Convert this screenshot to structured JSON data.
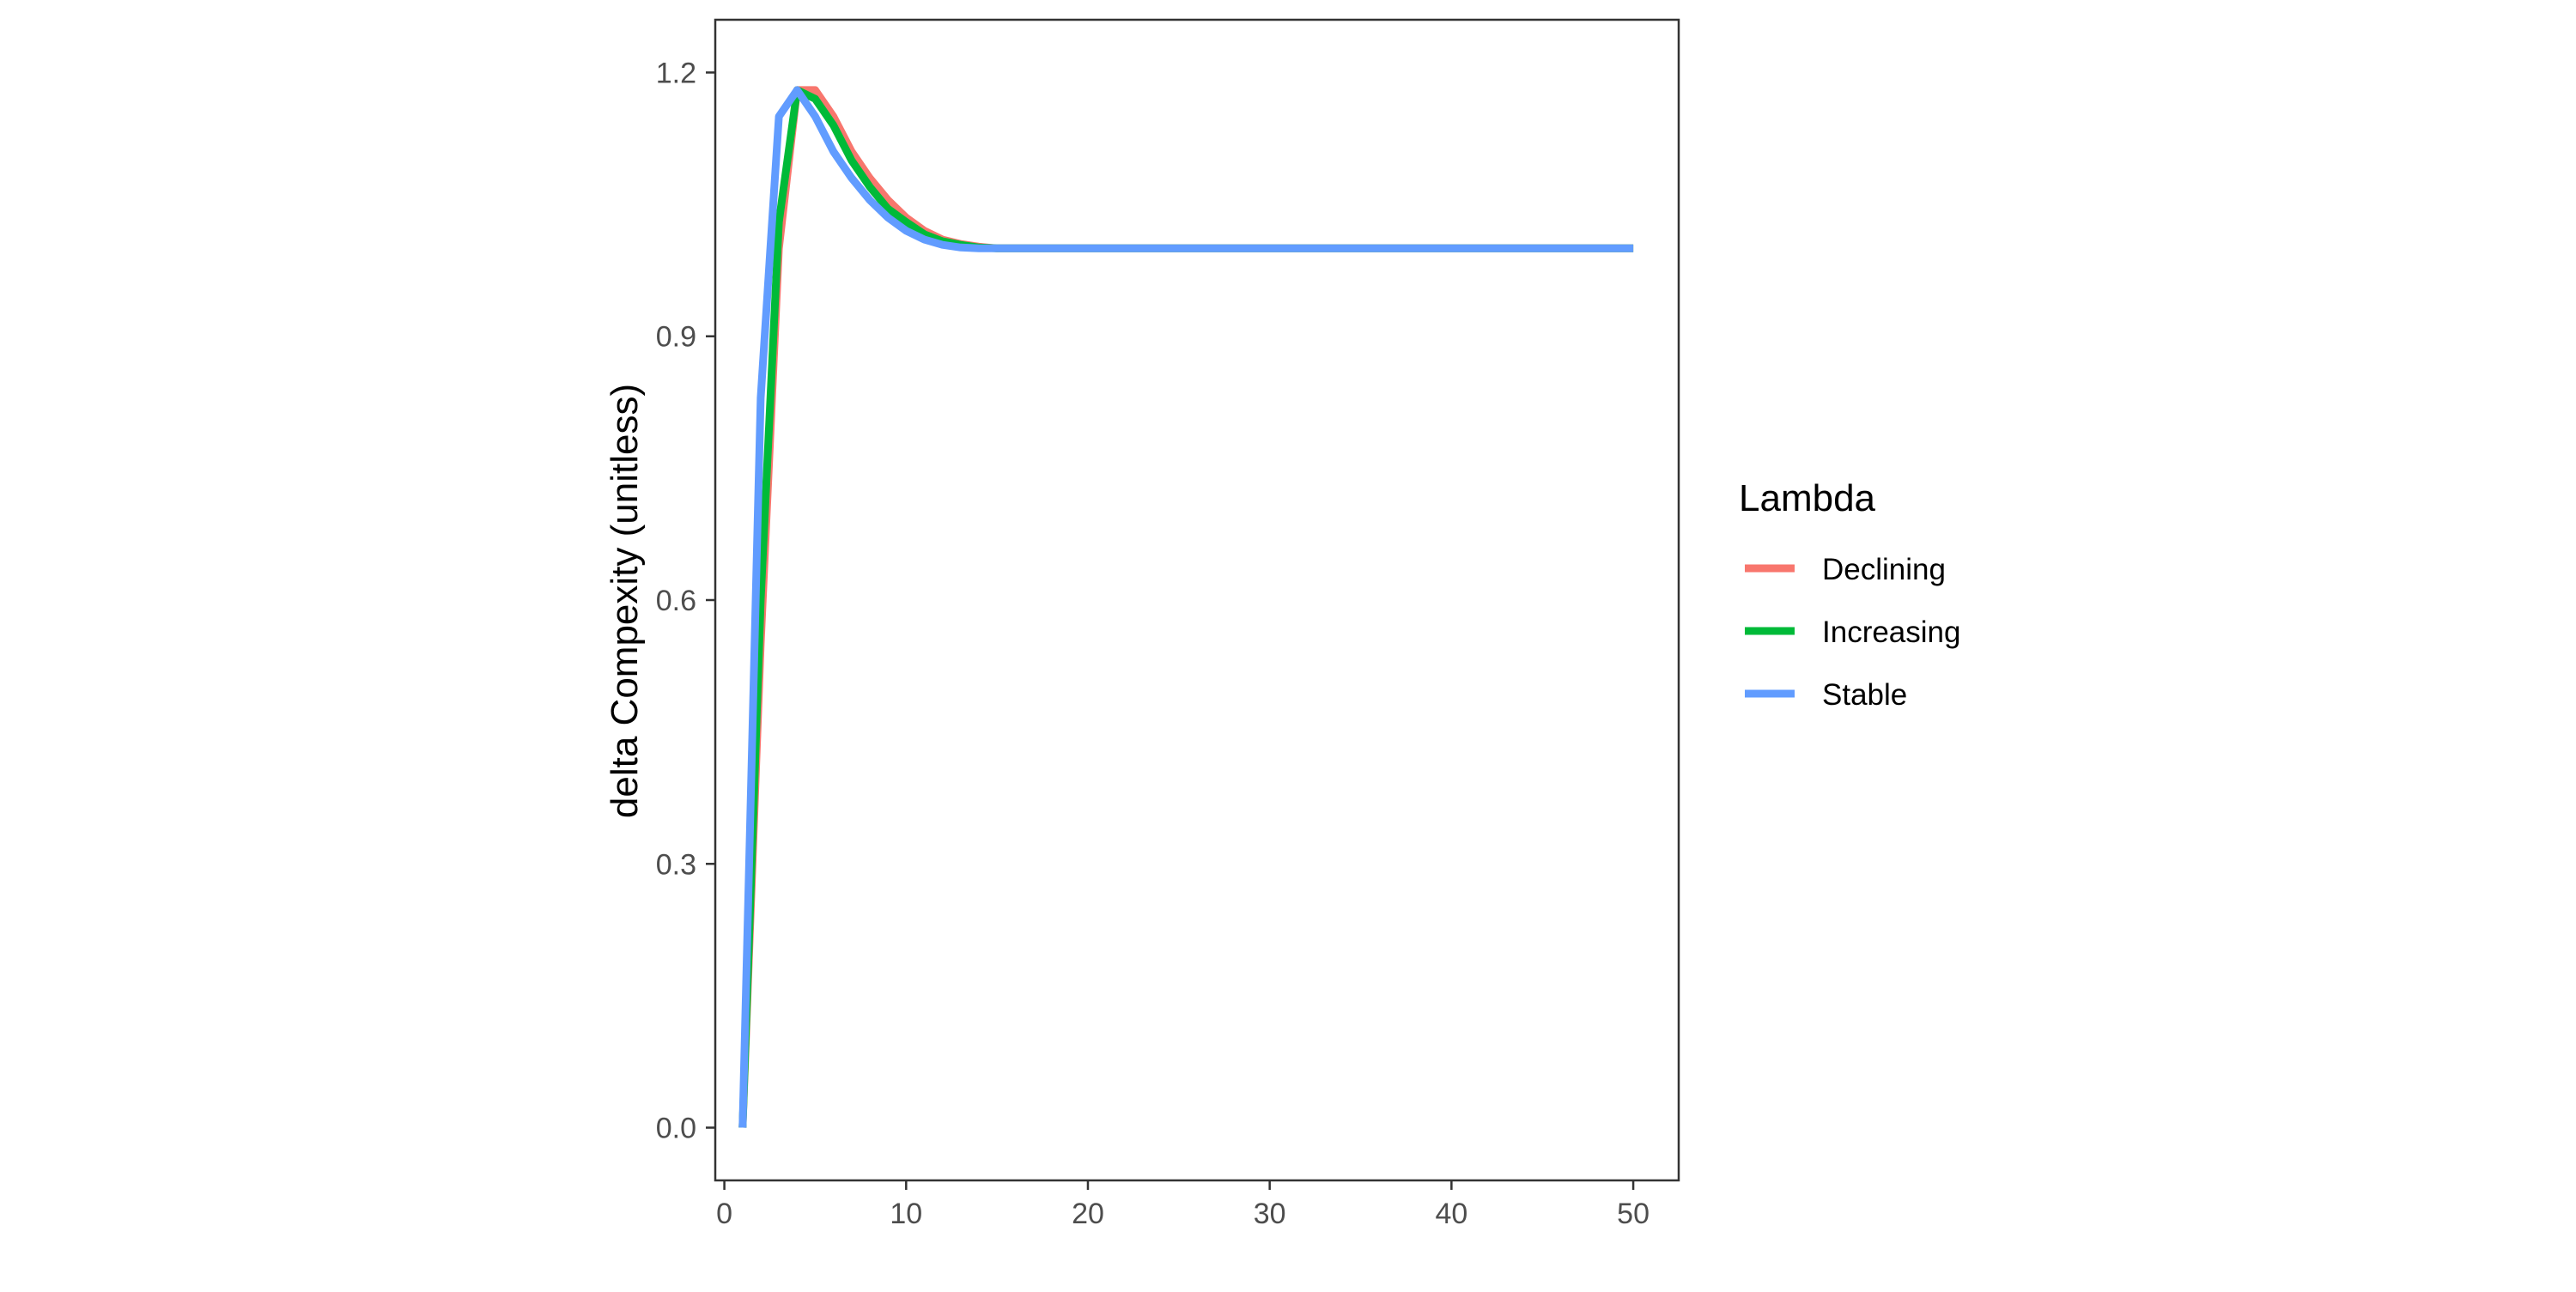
{
  "chart_data": {
    "type": "line",
    "title": "",
    "xlabel": "",
    "ylabel": "delta Compexity (unitless)",
    "xlim": [
      -0.5,
      52.5
    ],
    "ylim": [
      -0.06,
      1.26
    ],
    "x_ticks": [
      0,
      10,
      20,
      30,
      40,
      50
    ],
    "x_tick_labels": [
      "0",
      "10",
      "20",
      "30",
      "40",
      "50"
    ],
    "y_ticks": [
      0.0,
      0.3,
      0.6,
      0.9,
      1.2
    ],
    "y_tick_labels": [
      "0.0",
      "0.3",
      "0.6",
      "0.9",
      "1.2"
    ],
    "grid": false,
    "legend": {
      "title": "Lambda",
      "position": "right"
    },
    "series": [
      {
        "name": "Declining",
        "color": "#F8766D",
        "x": [
          1,
          2,
          3,
          4,
          5,
          6,
          7,
          8,
          9,
          10,
          11,
          12,
          13,
          14,
          15,
          16,
          17,
          18,
          19,
          20,
          21,
          22,
          23,
          24,
          25,
          26,
          27,
          28,
          29,
          30,
          31,
          32,
          33,
          34,
          35,
          36,
          37,
          38,
          39,
          40,
          41,
          42,
          43,
          44,
          45,
          46,
          47,
          48,
          49,
          50
        ],
        "y": [
          0.0,
          0.55,
          1.0,
          1.18,
          1.18,
          1.15,
          1.11,
          1.08,
          1.055,
          1.035,
          1.02,
          1.01,
          1.005,
          1.002,
          1.0,
          1.0,
          1.0,
          1.0,
          1.0,
          1.0,
          1.0,
          1.0,
          1.0,
          1.0,
          1.0,
          1.0,
          1.0,
          1.0,
          1.0,
          1.0,
          1.0,
          1.0,
          1.0,
          1.0,
          1.0,
          1.0,
          1.0,
          1.0,
          1.0,
          1.0,
          1.0,
          1.0,
          1.0,
          1.0,
          1.0,
          1.0,
          1.0,
          1.0,
          1.0,
          1.0
        ]
      },
      {
        "name": "Increasing",
        "color": "#00BA38",
        "x": [
          1,
          2,
          3,
          4,
          5,
          6,
          7,
          8,
          9,
          10,
          11,
          12,
          13,
          14,
          15,
          16,
          17,
          18,
          19,
          20,
          21,
          22,
          23,
          24,
          25,
          26,
          27,
          28,
          29,
          30,
          31,
          32,
          33,
          34,
          35,
          36,
          37,
          38,
          39,
          40,
          41,
          42,
          43,
          44,
          45,
          46,
          47,
          48,
          49,
          50
        ],
        "y": [
          0.0,
          0.6,
          1.03,
          1.18,
          1.17,
          1.14,
          1.1,
          1.07,
          1.045,
          1.03,
          1.016,
          1.008,
          1.004,
          1.001,
          1.0,
          1.0,
          1.0,
          1.0,
          1.0,
          1.0,
          1.0,
          1.0,
          1.0,
          1.0,
          1.0,
          1.0,
          1.0,
          1.0,
          1.0,
          1.0,
          1.0,
          1.0,
          1.0,
          1.0,
          1.0,
          1.0,
          1.0,
          1.0,
          1.0,
          1.0,
          1.0,
          1.0,
          1.0,
          1.0,
          1.0,
          1.0,
          1.0,
          1.0,
          1.0,
          1.0
        ]
      },
      {
        "name": "Stable",
        "color": "#619CFF",
        "x": [
          1,
          2,
          3,
          4,
          5,
          6,
          7,
          8,
          9,
          10,
          11,
          12,
          13,
          14,
          15,
          16,
          17,
          18,
          19,
          20,
          21,
          22,
          23,
          24,
          25,
          26,
          27,
          28,
          29,
          30,
          31,
          32,
          33,
          34,
          35,
          36,
          37,
          38,
          39,
          40,
          41,
          42,
          43,
          44,
          45,
          46,
          47,
          48,
          49,
          50
        ],
        "y": [
          0.0,
          0.83,
          1.15,
          1.18,
          1.15,
          1.11,
          1.08,
          1.055,
          1.035,
          1.02,
          1.01,
          1.004,
          1.001,
          1.0,
          1.0,
          1.0,
          1.0,
          1.0,
          1.0,
          1.0,
          1.0,
          1.0,
          1.0,
          1.0,
          1.0,
          1.0,
          1.0,
          1.0,
          1.0,
          1.0,
          1.0,
          1.0,
          1.0,
          1.0,
          1.0,
          1.0,
          1.0,
          1.0,
          1.0,
          1.0,
          1.0,
          1.0,
          1.0,
          1.0,
          1.0,
          1.0,
          1.0,
          1.0,
          1.0,
          1.0
        ]
      }
    ]
  }
}
